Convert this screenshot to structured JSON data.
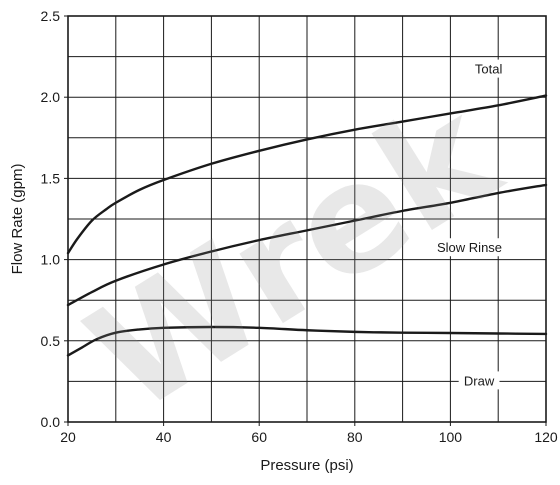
{
  "chart_data": {
    "type": "line",
    "title": "",
    "xlabel": "Pressure (psi)",
    "ylabel": "Flow Rate (gpm)",
    "xlim": [
      20,
      120
    ],
    "ylim": [
      0.0,
      2.5
    ],
    "x_ticks": [
      "20",
      "40",
      "60",
      "80",
      "100",
      "120"
    ],
    "y_ticks": [
      "0.0",
      "0.5",
      "1.0",
      "1.5",
      "2.0",
      "2.5"
    ],
    "x_minor_step": 10,
    "y_minor_step": 0.25,
    "grid": true,
    "series": [
      {
        "name": "Total",
        "x": [
          20,
          22,
          25,
          28,
          30,
          35,
          40,
          50,
          60,
          70,
          80,
          90,
          100,
          110,
          120
        ],
        "values": [
          1.04,
          1.13,
          1.24,
          1.31,
          1.35,
          1.43,
          1.49,
          1.59,
          1.67,
          1.74,
          1.8,
          1.85,
          1.9,
          1.95,
          2.01
        ]
      },
      {
        "name": "Slow Rinse",
        "x": [
          20,
          25,
          30,
          40,
          50,
          60,
          70,
          80,
          90,
          100,
          110,
          120
        ],
        "values": [
          0.72,
          0.8,
          0.87,
          0.97,
          1.05,
          1.12,
          1.18,
          1.24,
          1.3,
          1.35,
          1.41,
          1.46
        ]
      },
      {
        "name": "Draw",
        "x": [
          20,
          23,
          26,
          30,
          35,
          40,
          50,
          60,
          70,
          80,
          90,
          100,
          110,
          120
        ],
        "values": [
          0.41,
          0.46,
          0.51,
          0.55,
          0.57,
          0.58,
          0.585,
          0.58,
          0.565,
          0.555,
          0.55,
          0.548,
          0.545,
          0.542
        ]
      }
    ],
    "series_labels": [
      {
        "name": "Total",
        "at_x": 108,
        "at_y": 2.17
      },
      {
        "name": "Slow Rinse",
        "at_x": 104,
        "at_y": 1.07
      },
      {
        "name": "Draw",
        "at_x": 106,
        "at_y": 0.25
      }
    ],
    "watermark": "Wrek"
  }
}
